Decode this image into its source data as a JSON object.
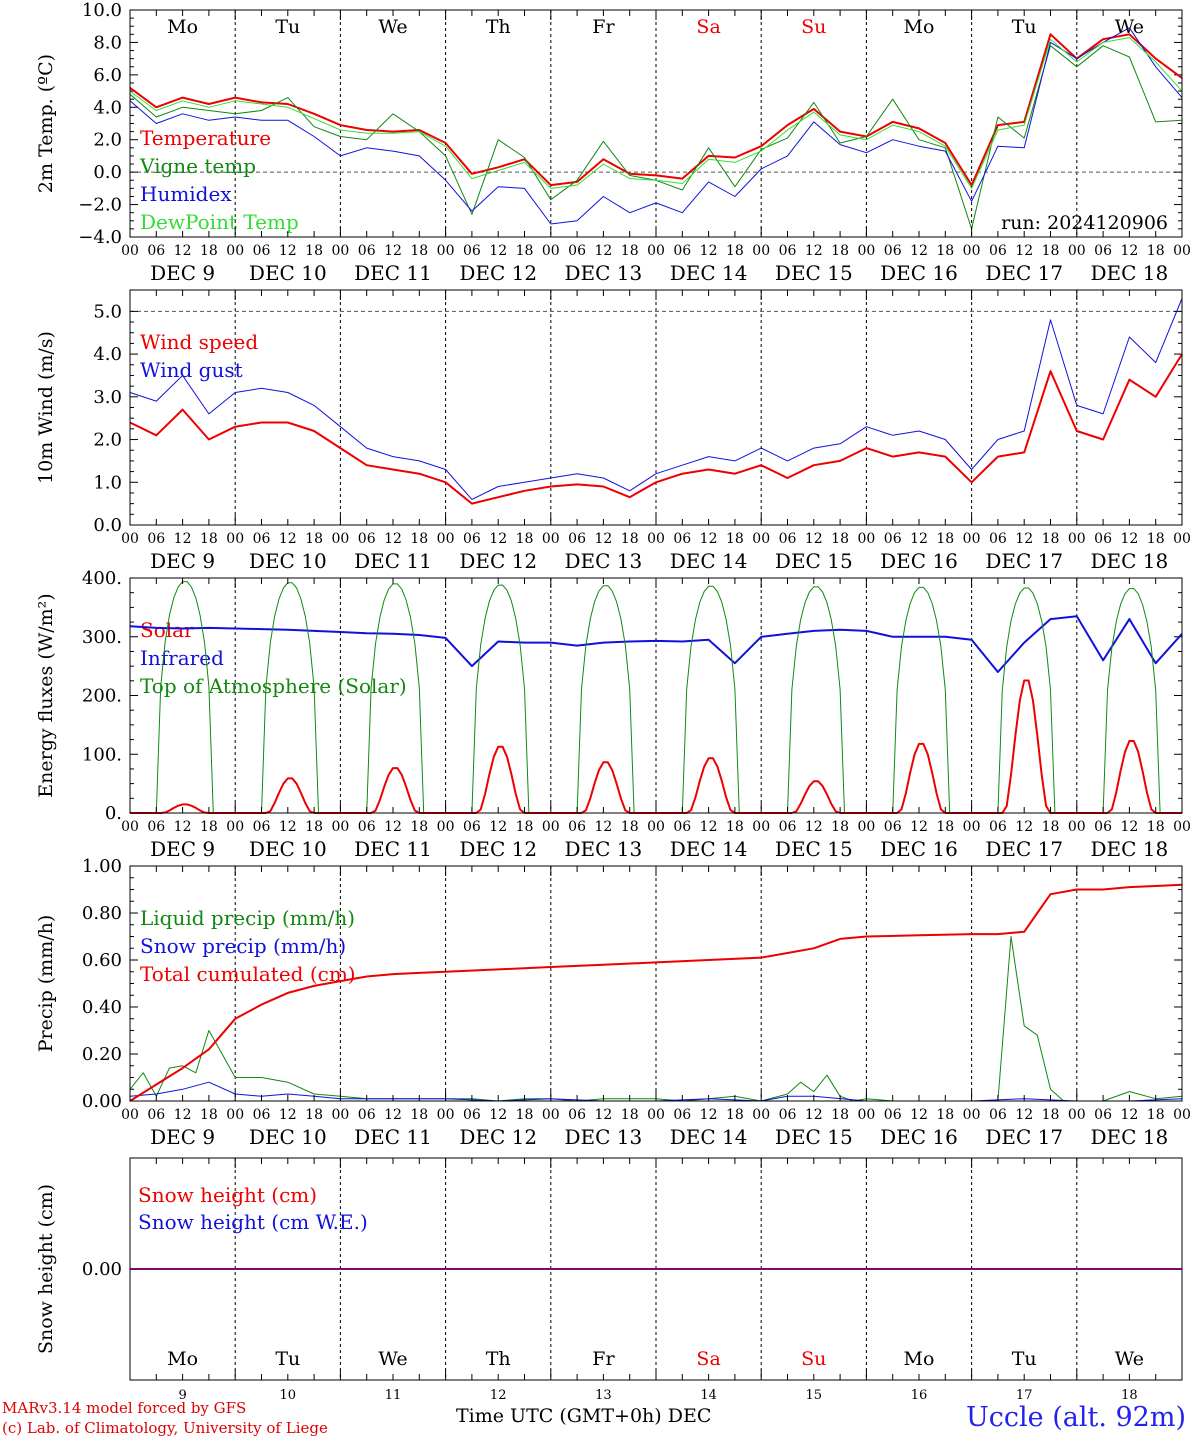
{
  "colors": {
    "red": "#ee0000",
    "green": "#118811",
    "blue": "#1111dd",
    "lightgreen": "#33dd33",
    "weekend": "#ee0000"
  },
  "days": {
    "abbr": [
      "Mo",
      "Tu",
      "We",
      "Th",
      "Fr",
      "Sa",
      "Su",
      "Mo",
      "Tu",
      "We"
    ],
    "weekend": [
      false,
      false,
      false,
      false,
      false,
      true,
      true,
      false,
      false,
      false
    ],
    "dates": [
      "DEC  9",
      "DEC 10",
      "DEC 11",
      "DEC 12",
      "DEC 13",
      "DEC 14",
      "DEC 15",
      "DEC 16",
      "DEC 17",
      "DEC 18"
    ],
    "numbers": [
      "9",
      "10",
      "11",
      "12",
      "13",
      "14",
      "15",
      "16",
      "17",
      "18"
    ],
    "hours": [
      "00",
      "06",
      "12",
      "18"
    ],
    "end_hour": "00"
  },
  "footer": {
    "credit_line1": "MARv3.14 model forced by GFS",
    "credit_line2": "(c) Lab. of Climatology, University of Liege",
    "xlabel": "Time UTC (GMT+0h) DEC",
    "station": "Uccle (alt. 92m)"
  },
  "chart_data": [
    {
      "type": "line",
      "ylabel": "2m Temp. (ºC)",
      "ylim": [
        -4,
        10
      ],
      "yticks": [
        "−4.0",
        "−2.0",
        "0.0",
        "2.0",
        "4.0",
        "6.0",
        "8.0",
        "10.0"
      ],
      "annotation": "run: 2024120906",
      "x_unit": "hours since DEC 9 00 UTC",
      "series": [
        {
          "name": "Temperature",
          "color": "red",
          "width": 2,
          "x": [
            0,
            6,
            12,
            18,
            24,
            30,
            36,
            42,
            48,
            54,
            60,
            66,
            72,
            78,
            84,
            90,
            96,
            102,
            108,
            114,
            120,
            126,
            132,
            138,
            144,
            150,
            156,
            162,
            168,
            174,
            180,
            186,
            192,
            198,
            204,
            210,
            216,
            222,
            228,
            234,
            240
          ],
          "y": [
            5.2,
            4.0,
            4.6,
            4.2,
            4.6,
            4.3,
            4.2,
            3.6,
            2.9,
            2.6,
            2.5,
            2.6,
            1.8,
            -0.1,
            0.3,
            0.8,
            -0.8,
            -0.6,
            0.8,
            -0.1,
            -0.2,
            -0.4,
            1.0,
            0.9,
            1.6,
            2.9,
            3.9,
            2.5,
            2.2,
            3.1,
            2.7,
            1.8,
            -0.8,
            2.9,
            3.1,
            8.5,
            7.0,
            8.2,
            8.5,
            7.0,
            5.8
          ]
        },
        {
          "name": "Vigne temp",
          "color": "green",
          "width": 1,
          "x": [
            0,
            6,
            12,
            18,
            24,
            30,
            36,
            42,
            48,
            54,
            60,
            66,
            72,
            78,
            84,
            90,
            96,
            102,
            108,
            114,
            120,
            126,
            132,
            138,
            144,
            150,
            156,
            162,
            168,
            174,
            180,
            186,
            192,
            198,
            204,
            210,
            216,
            222,
            228,
            234,
            240
          ],
          "y": [
            4.8,
            3.4,
            4.0,
            3.8,
            3.6,
            3.8,
            4.6,
            2.8,
            2.2,
            2.0,
            3.6,
            2.5,
            1.0,
            -2.6,
            2.0,
            0.9,
            -1.7,
            -0.5,
            1.9,
            -0.2,
            -0.5,
            -1.1,
            1.5,
            -0.9,
            1.4,
            2.1,
            4.3,
            1.8,
            2.2,
            4.5,
            2.0,
            1.5,
            -3.5,
            3.4,
            2.1,
            7.8,
            6.5,
            7.8,
            7.1,
            3.1,
            3.2
          ]
        },
        {
          "name": "Humidex",
          "color": "blue",
          "width": 1,
          "x": [
            0,
            6,
            12,
            18,
            24,
            30,
            36,
            42,
            48,
            54,
            60,
            66,
            72,
            78,
            84,
            90,
            96,
            102,
            108,
            114,
            120,
            126,
            132,
            138,
            144,
            150,
            156,
            162,
            168,
            174,
            180,
            186,
            192,
            198,
            204,
            210,
            216,
            222,
            228,
            234,
            240
          ],
          "y": [
            4.4,
            3.0,
            3.6,
            3.2,
            3.4,
            3.2,
            3.2,
            2.2,
            1.0,
            1.5,
            1.3,
            1.0,
            -0.5,
            -2.4,
            -0.9,
            -1.0,
            -3.2,
            -3.0,
            -1.5,
            -2.5,
            -1.9,
            -2.5,
            -0.6,
            -1.5,
            0.2,
            1.0,
            3.1,
            1.7,
            1.2,
            2.0,
            1.6,
            1.3,
            -1.8,
            1.6,
            1.5,
            8.0,
            7.0,
            8.0,
            8.9,
            6.5,
            4.6
          ]
        },
        {
          "name": "DewPoint Temp",
          "color": "lightgreen",
          "width": 1,
          "x": [
            0,
            6,
            12,
            18,
            24,
            30,
            36,
            42,
            48,
            54,
            60,
            66,
            72,
            78,
            84,
            90,
            96,
            102,
            108,
            114,
            120,
            126,
            132,
            138,
            144,
            150,
            156,
            162,
            168,
            174,
            180,
            186,
            192,
            198,
            204,
            210,
            216,
            222,
            228,
            234,
            240
          ],
          "y": [
            5.0,
            3.8,
            4.4,
            4.0,
            4.4,
            4.2,
            4.0,
            3.3,
            2.6,
            2.4,
            2.4,
            2.5,
            1.6,
            -0.4,
            0.1,
            0.6,
            -1.0,
            -0.8,
            0.5,
            -0.4,
            -0.5,
            -0.7,
            0.8,
            0.6,
            1.3,
            2.6,
            3.7,
            2.3,
            2.0,
            2.9,
            2.5,
            1.6,
            -1.0,
            2.6,
            2.9,
            8.2,
            6.8,
            8.0,
            8.3,
            6.8,
            5.0
          ]
        }
      ]
    },
    {
      "type": "line",
      "ylabel": "10m Wind (m/s)",
      "ylim": [
        0,
        5.5
      ],
      "yticks": [
        "0.0",
        "1.0",
        "2.0",
        "3.0",
        "4.0",
        "5.0"
      ],
      "x_unit": "hours since DEC 9 00 UTC",
      "series": [
        {
          "name": "Wind speed",
          "color": "red",
          "width": 2,
          "x": [
            0,
            6,
            12,
            18,
            24,
            30,
            36,
            42,
            48,
            54,
            60,
            66,
            72,
            78,
            84,
            90,
            96,
            102,
            108,
            114,
            120,
            126,
            132,
            138,
            144,
            150,
            156,
            162,
            168,
            174,
            180,
            186,
            192,
            198,
            204,
            210,
            216,
            222,
            228,
            234,
            240
          ],
          "y": [
            2.4,
            2.1,
            2.7,
            2.0,
            2.3,
            2.4,
            2.4,
            2.2,
            1.8,
            1.4,
            1.3,
            1.2,
            1.0,
            0.5,
            0.65,
            0.8,
            0.9,
            0.95,
            0.9,
            0.65,
            1.0,
            1.2,
            1.3,
            1.2,
            1.4,
            1.1,
            1.4,
            1.5,
            1.8,
            1.6,
            1.7,
            1.6,
            1.0,
            1.6,
            1.7,
            3.6,
            2.2,
            2.0,
            3.4,
            3.0,
            4.0
          ]
        },
        {
          "name": "Wind gust",
          "color": "blue",
          "width": 1,
          "x": [
            0,
            6,
            12,
            18,
            24,
            30,
            36,
            42,
            48,
            54,
            60,
            66,
            72,
            78,
            84,
            90,
            96,
            102,
            108,
            114,
            120,
            126,
            132,
            138,
            144,
            150,
            156,
            162,
            168,
            174,
            180,
            186,
            192,
            198,
            204,
            210,
            216,
            222,
            228,
            234,
            240
          ],
          "y": [
            3.1,
            2.9,
            3.5,
            2.6,
            3.1,
            3.2,
            3.1,
            2.8,
            2.3,
            1.8,
            1.6,
            1.5,
            1.3,
            0.6,
            0.9,
            1.0,
            1.1,
            1.2,
            1.1,
            0.8,
            1.2,
            1.4,
            1.6,
            1.5,
            1.8,
            1.5,
            1.8,
            1.9,
            2.3,
            2.1,
            2.2,
            2.0,
            1.3,
            2.0,
            2.2,
            4.8,
            2.8,
            2.6,
            4.4,
            3.8,
            5.3
          ]
        }
      ]
    },
    {
      "type": "line",
      "ylabel": "Energy fluxes (W/m²)",
      "ylim": [
        0,
        400
      ],
      "yticks": [
        "0.",
        "100.",
        "200.",
        "300.",
        "400."
      ],
      "x_unit": "hours since DEC 9 00 UTC",
      "series": [
        {
          "name": "Solar",
          "color": "red",
          "width": 2,
          "noon_peaks": [
            15,
            60,
            78,
            115,
            88,
            95,
            55,
            120,
            230,
            125
          ]
        },
        {
          "name": "Infrared",
          "color": "blue",
          "width": 2,
          "x": [
            0,
            6,
            12,
            18,
            24,
            30,
            36,
            42,
            48,
            54,
            60,
            66,
            72,
            78,
            84,
            90,
            96,
            102,
            108,
            114,
            120,
            126,
            132,
            138,
            144,
            150,
            156,
            162,
            168,
            174,
            180,
            186,
            192,
            198,
            204,
            210,
            216,
            222,
            228,
            234,
            240
          ],
          "y": [
            318,
            315,
            314,
            315,
            314,
            313,
            312,
            310,
            308,
            306,
            305,
            303,
            298,
            250,
            292,
            290,
            290,
            285,
            290,
            292,
            293,
            292,
            295,
            255,
            300,
            305,
            310,
            312,
            310,
            300,
            300,
            300,
            295,
            240,
            290,
            330,
            335,
            260,
            330,
            255,
            305
          ]
        },
        {
          "name": "Top of Atmosphere (Solar)",
          "color": "green",
          "width": 1,
          "noon_peaks": [
            395,
            393,
            391,
            389,
            388,
            387,
            386,
            385,
            384,
            383
          ]
        }
      ]
    },
    {
      "type": "line",
      "ylabel": "Precip (mm/h)",
      "ylim": [
        0,
        1
      ],
      "yticks": [
        "0.00",
        "0.20",
        "0.40",
        "0.60",
        "0.80",
        "1.00"
      ],
      "x_unit": "hours since DEC 9 00 UTC",
      "series": [
        {
          "name": "Liquid precip (mm/h)",
          "color": "green",
          "width": 1,
          "x": [
            0,
            3,
            6,
            9,
            12,
            15,
            18,
            21,
            24,
            30,
            36,
            42,
            48,
            54,
            60,
            66,
            72,
            78,
            84,
            90,
            96,
            102,
            108,
            114,
            120,
            126,
            132,
            138,
            144,
            150,
            153,
            156,
            159,
            162,
            165,
            168,
            174,
            180,
            186,
            192,
            198,
            201,
            204,
            207,
            210,
            213,
            216,
            222,
            228,
            234,
            240
          ],
          "y": [
            0.05,
            0.12,
            0.02,
            0.14,
            0.15,
            0.12,
            0.3,
            0.2,
            0.1,
            0.1,
            0.08,
            0.03,
            0.02,
            0.01,
            0.01,
            0.01,
            0.01,
            0.01,
            0.0,
            0.01,
            0.01,
            0.0,
            0.01,
            0.01,
            0.01,
            0.0,
            0.01,
            0.02,
            0.0,
            0.03,
            0.08,
            0.04,
            0.11,
            0.02,
            0.0,
            0.01,
            0.0,
            0.0,
            0.0,
            0.0,
            0.0,
            0.7,
            0.32,
            0.28,
            0.05,
            0.0,
            0.0,
            0.0,
            0.04,
            0.01,
            0.02
          ]
        },
        {
          "name": "Snow precip (mm/h)",
          "color": "blue",
          "width": 1,
          "x": [
            0,
            6,
            12,
            18,
            24,
            30,
            36,
            42,
            48,
            54,
            60,
            72,
            84,
            96,
            108,
            120,
            132,
            144,
            150,
            156,
            168,
            180,
            192,
            204,
            216,
            228,
            240
          ],
          "y": [
            0.02,
            0.03,
            0.05,
            0.08,
            0.03,
            0.02,
            0.03,
            0.02,
            0.01,
            0.01,
            0.01,
            0.01,
            0.0,
            0.01,
            0.0,
            0.0,
            0.01,
            0.0,
            0.02,
            0.02,
            0.0,
            0.0,
            0.0,
            0.01,
            0.0,
            0.0,
            0.01
          ]
        },
        {
          "name": "Total cumulated (cm)",
          "color": "red",
          "width": 2,
          "x": [
            0,
            6,
            12,
            18,
            24,
            30,
            36,
            42,
            48,
            54,
            60,
            66,
            72,
            84,
            96,
            108,
            120,
            132,
            144,
            150,
            156,
            162,
            168,
            180,
            192,
            198,
            204,
            207,
            210,
            216,
            222,
            228,
            234,
            240
          ],
          "y": [
            0.0,
            0.07,
            0.14,
            0.22,
            0.35,
            0.41,
            0.46,
            0.49,
            0.51,
            0.53,
            0.54,
            0.545,
            0.55,
            0.56,
            0.57,
            0.58,
            0.59,
            0.6,
            0.61,
            0.63,
            0.65,
            0.69,
            0.7,
            0.705,
            0.71,
            0.71,
            0.72,
            0.8,
            0.88,
            0.9,
            0.9,
            0.91,
            0.915,
            0.92
          ]
        }
      ]
    },
    {
      "type": "line",
      "ylabel": "Snow height (cm)",
      "ylim": [
        -1,
        1
      ],
      "yticks": [
        "0.00"
      ],
      "x_unit": "hours since DEC 9 00 UTC",
      "series": [
        {
          "name": "Snow height (cm)",
          "color": "red",
          "width": 2,
          "x": [
            0,
            240
          ],
          "y": [
            0,
            0
          ]
        },
        {
          "name": "Snow height (cm W.E.)",
          "color": "blue",
          "width": 1,
          "x": [
            0,
            240
          ],
          "y": [
            0,
            0
          ]
        }
      ]
    }
  ]
}
